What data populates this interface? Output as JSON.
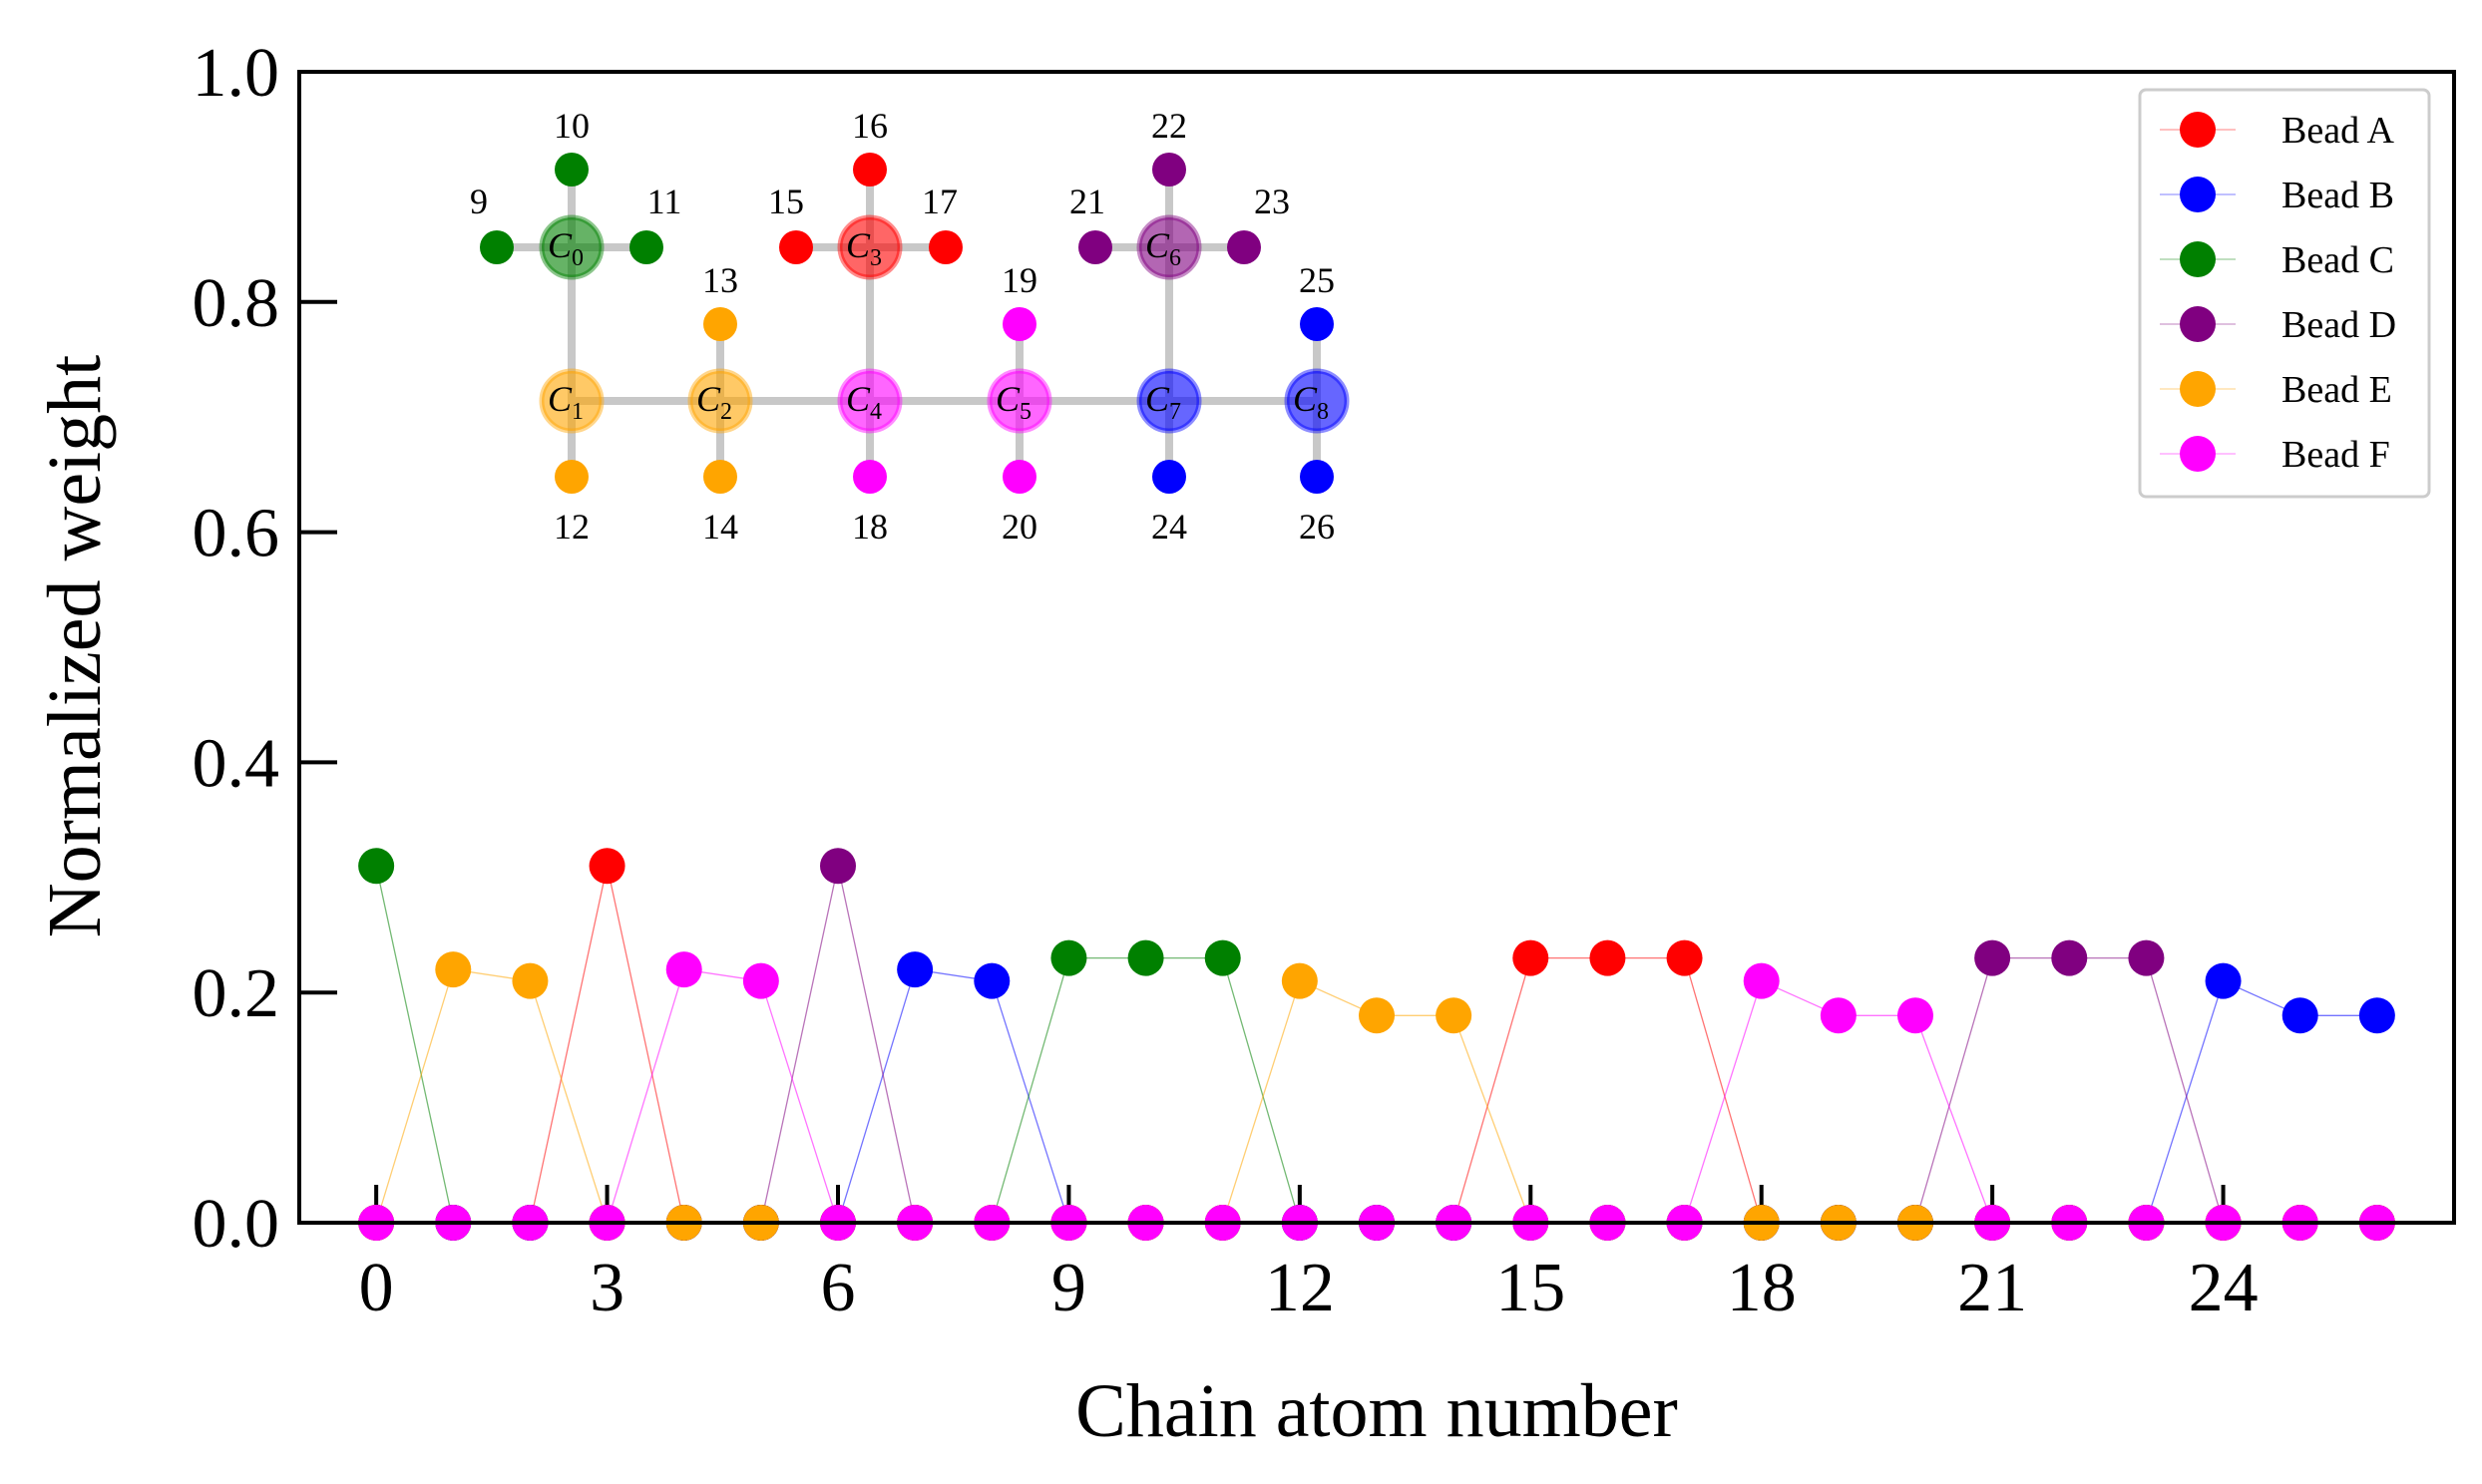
{
  "chart_data": {
    "type": "line",
    "xlabel": "Chain atom number",
    "ylabel": "Normalized weight",
    "xlim": [
      -1,
      27
    ],
    "ylim": [
      0,
      1.0
    ],
    "x_ticks": [
      0,
      3,
      6,
      9,
      12,
      15,
      18,
      21,
      24
    ],
    "y_ticks": [
      0.0,
      0.2,
      0.4,
      0.6,
      0.8,
      1.0
    ],
    "y_tick_labels": [
      "0.0",
      "0.2",
      "0.4",
      "0.6",
      "0.8",
      "1.0"
    ],
    "legend_position": "top-right",
    "x": [
      0,
      1,
      2,
      3,
      4,
      5,
      6,
      7,
      8,
      9,
      10,
      11,
      12,
      13,
      14,
      15,
      16,
      17,
      18,
      19,
      20,
      21,
      22,
      23,
      24,
      25,
      26
    ],
    "series": [
      {
        "name": "Bead A",
        "color": "#ff0000",
        "values": [
          0,
          0,
          0,
          0.31,
          0,
          0,
          0,
          0,
          0,
          0,
          0,
          0,
          0,
          0,
          0,
          0.23,
          0.23,
          0.23,
          0,
          0,
          0,
          0,
          0,
          0,
          0,
          0,
          0
        ]
      },
      {
        "name": "Bead B",
        "color": "#0000ff",
        "values": [
          0,
          0,
          0,
          0,
          0,
          0,
          0,
          0.22,
          0.21,
          0,
          0,
          0,
          0,
          0,
          0,
          0,
          0,
          0,
          0,
          0,
          0,
          0,
          0,
          0,
          0.21,
          0.18,
          0.18
        ]
      },
      {
        "name": "Bead C",
        "color": "#008000",
        "values": [
          0.31,
          0,
          0,
          0,
          0,
          0,
          0,
          0,
          0,
          0.23,
          0.23,
          0.23,
          0,
          0,
          0,
          0,
          0,
          0,
          0,
          0,
          0,
          0,
          0,
          0,
          0,
          0,
          0
        ]
      },
      {
        "name": "Bead D",
        "color": "#800080",
        "values": [
          0,
          0,
          0,
          0,
          0,
          0,
          0.31,
          0,
          0,
          0,
          0,
          0,
          0,
          0,
          0,
          0,
          0,
          0,
          0,
          0,
          0,
          0.23,
          0.23,
          0.23,
          0,
          0,
          0
        ]
      },
      {
        "name": "Bead E",
        "color": "#ffa500",
        "values": [
          0,
          0.22,
          0.21,
          0,
          0,
          0,
          0,
          0,
          0,
          0,
          0,
          0,
          0.21,
          0.18,
          0.18,
          0,
          0,
          0,
          0,
          0,
          0,
          0,
          0,
          0,
          0,
          0,
          0
        ]
      },
      {
        "name": "Bead F",
        "color": "#ff00ff",
        "values": [
          0,
          0,
          0,
          0,
          0.22,
          0.21,
          0,
          0,
          0,
          0,
          0,
          0,
          0,
          0,
          0,
          0,
          0,
          0,
          0.21,
          0.18,
          0.18,
          0,
          0,
          0,
          0,
          0,
          0
        ]
      }
    ],
    "inset": {
      "backbone": [
        {
          "id": "C0",
          "sub": "0",
          "bead": "Bead C"
        },
        {
          "id": "C1",
          "sub": "1",
          "bead": "Bead E"
        },
        {
          "id": "C2",
          "sub": "2",
          "bead": "Bead E"
        },
        {
          "id": "C3",
          "sub": "3",
          "bead": "Bead A"
        },
        {
          "id": "C4",
          "sub": "4",
          "bead": "Bead F"
        },
        {
          "id": "C5",
          "sub": "5",
          "bead": "Bead F"
        },
        {
          "id": "C6",
          "sub": "6",
          "bead": "Bead D"
        },
        {
          "id": "C7",
          "sub": "7",
          "bead": "Bead B"
        },
        {
          "id": "C8",
          "sub": "8",
          "bead": "Bead B"
        }
      ],
      "substituents": [
        {
          "label": "9",
          "bead": "Bead C"
        },
        {
          "label": "10",
          "bead": "Bead C"
        },
        {
          "label": "11",
          "bead": "Bead C"
        },
        {
          "label": "12",
          "bead": "Bead E"
        },
        {
          "label": "13",
          "bead": "Bead E"
        },
        {
          "label": "14",
          "bead": "Bead E"
        },
        {
          "label": "15",
          "bead": "Bead A"
        },
        {
          "label": "16",
          "bead": "Bead A"
        },
        {
          "label": "17",
          "bead": "Bead A"
        },
        {
          "label": "18",
          "bead": "Bead F"
        },
        {
          "label": "19",
          "bead": "Bead F"
        },
        {
          "label": "20",
          "bead": "Bead F"
        },
        {
          "label": "21",
          "bead": "Bead D"
        },
        {
          "label": "22",
          "bead": "Bead D"
        },
        {
          "label": "23",
          "bead": "Bead D"
        },
        {
          "label": "24",
          "bead": "Bead B"
        },
        {
          "label": "25",
          "bead": "Bead B"
        },
        {
          "label": "26",
          "bead": "Bead B"
        }
      ]
    }
  }
}
